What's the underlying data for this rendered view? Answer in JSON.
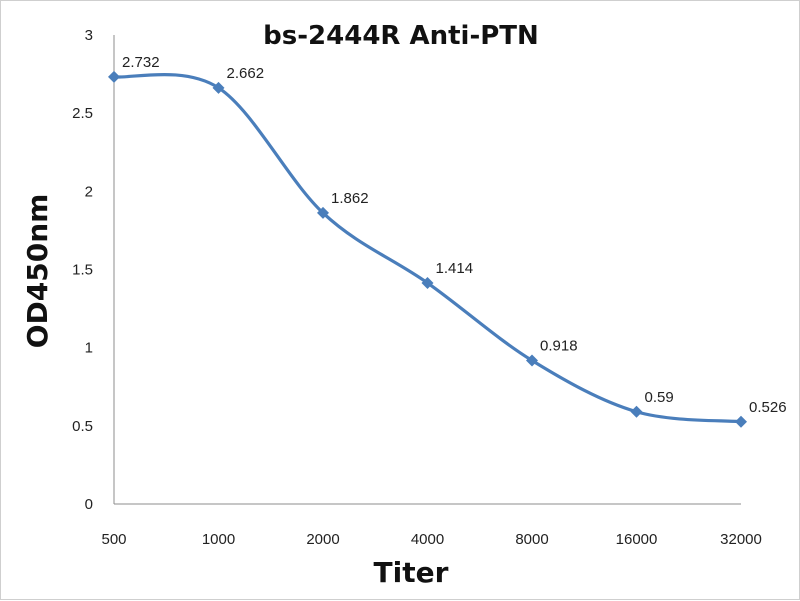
{
  "chart_data": {
    "type": "line",
    "title": "bs-2444R Anti-PTN",
    "xlabel": "Titer",
    "ylabel": "OD450nm",
    "categories": [
      "500",
      "1000",
      "2000",
      "4000",
      "8000",
      "16000",
      "32000"
    ],
    "series": [
      {
        "values": [
          2.732,
          2.662,
          1.862,
          1.414,
          0.918,
          0.59,
          0.526
        ],
        "labels": [
          "2.732",
          "2.662",
          "1.862",
          "1.414",
          "0.918",
          "0.59",
          "0.526"
        ],
        "color": "#4a7ebb"
      }
    ],
    "ylim": [
      0,
      3
    ],
    "yticks": [
      "0",
      "0.5",
      "1",
      "1.5",
      "2",
      "2.5",
      "3"
    ],
    "grid": false,
    "smooth": true,
    "marker": "diamond"
  }
}
